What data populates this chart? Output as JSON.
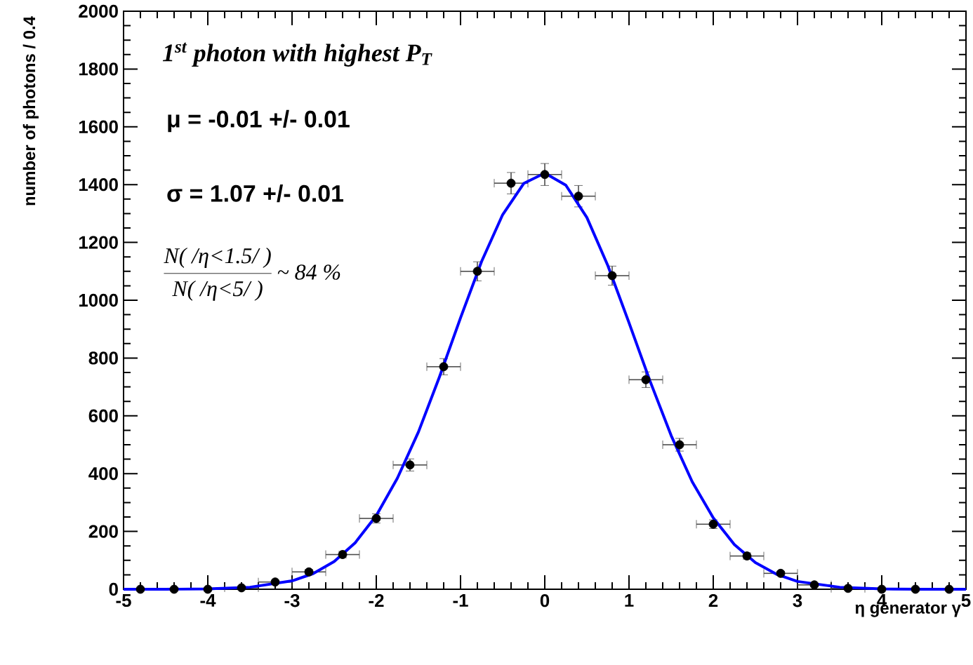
{
  "chart_data": {
    "type": "scatter",
    "xlabel": "η generator γ",
    "ylabel": "number of photons / 0.4",
    "annotations": [
      "1$^{st}$ photon with highest P$_{T}$",
      "μ = -0.01 +/- 0.01",
      "σ = 1.07 +/- 0.01",
      "N( /η<1.5/ )",
      "N( /η<5/ )",
      "~  84 %"
    ],
    "xlim": [
      -5,
      5
    ],
    "ylim": [
      0,
      2000
    ],
    "xticks": [
      -5,
      -4,
      -3,
      -2,
      -1,
      0,
      1,
      2,
      3,
      4,
      5
    ],
    "yticks": [
      0,
      200,
      400,
      600,
      800,
      1000,
      1200,
      1400,
      1600,
      1800,
      2000
    ],
    "marker": "circle",
    "series": [
      {
        "color": "#000000",
        "x": [
          -4.8,
          -4.4,
          -4.0,
          -3.6,
          -3.2,
          -2.8,
          -2.4,
          -2.0,
          -1.6,
          -1.2,
          -0.8,
          -0.4,
          0.0,
          0.4,
          0.8,
          1.2,
          1.6,
          2.0,
          2.4,
          2.8,
          3.2,
          3.6,
          4.0,
          4.4,
          4.8
        ],
        "values": [
          0,
          0,
          0,
          5,
          25,
          60,
          120,
          245,
          430,
          770,
          1100,
          1405,
          1435,
          1360,
          1085,
          725,
          500,
          225,
          115,
          55,
          15,
          3,
          0,
          0,
          0
        ],
        "errors": [
          null,
          null,
          null,
          2,
          5,
          8,
          11,
          16,
          21,
          28,
          33,
          37,
          38,
          37,
          33,
          27,
          22,
          15,
          11,
          7,
          4,
          2,
          null,
          null,
          null
        ],
        "xerrors": [
          null,
          null,
          null,
          0.2,
          0.2,
          0.2,
          0.2,
          0.2,
          0.2,
          0.2,
          0.2,
          0.2,
          0.2,
          0.2,
          0.2,
          0.2,
          0.2,
          0.2,
          0.2,
          0.2,
          0.2,
          0.2,
          null,
          null,
          null
        ]
      },
      {
        "type": "line",
        "color": "#0000ff",
        "marker": "none",
        "x": [
          -5,
          -4.5,
          -4,
          -3.5,
          -3,
          -2.75,
          -2.5,
          -2.25,
          -2,
          -1.75,
          -1.5,
          -1.25,
          -1,
          -0.75,
          -0.5,
          -0.25,
          0,
          0.25,
          0.5,
          0.75,
          1,
          1.25,
          1.5,
          1.75,
          2,
          2.25,
          2.5,
          2.75,
          3,
          3.5,
          4,
          4.5,
          5
        ],
        "values": [
          0,
          0,
          1,
          7,
          29,
          54,
          96,
          161,
          255,
          384,
          544,
          735,
          939,
          1134,
          1296,
          1404,
          1440,
          1398,
          1286,
          1119,
          922,
          720,
          532,
          372,
          247,
          155,
          92,
          52,
          27,
          7,
          1,
          0,
          0
        ]
      }
    ]
  }
}
